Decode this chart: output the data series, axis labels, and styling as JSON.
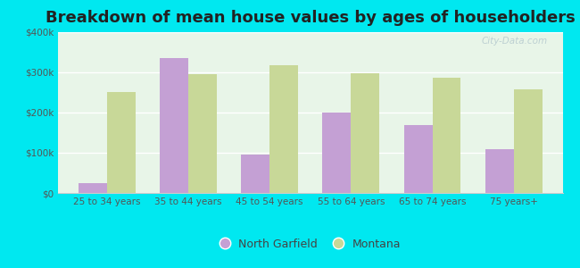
{
  "title": "Breakdown of mean house values by ages of householders",
  "categories": [
    "25 to 34 years",
    "35 to 44 years",
    "45 to 54 years",
    "55 to 64 years",
    "65 to 74 years",
    "75 years+"
  ],
  "north_garfield": [
    25000,
    335000,
    95000,
    200000,
    170000,
    110000
  ],
  "montana": [
    250000,
    295000,
    318000,
    298000,
    287000,
    258000
  ],
  "color_north_garfield": "#c4a0d4",
  "color_montana": "#c8d898",
  "background_outer": "#00e8f0",
  "ylim": [
    0,
    400000
  ],
  "yticks": [
    0,
    100000,
    200000,
    300000,
    400000
  ],
  "ytick_labels": [
    "$0",
    "$100k",
    "$200k",
    "$300k",
    "$400k"
  ],
  "legend_north_garfield": "North Garfield",
  "legend_montana": "Montana",
  "title_fontsize": 13,
  "bar_width": 0.35
}
